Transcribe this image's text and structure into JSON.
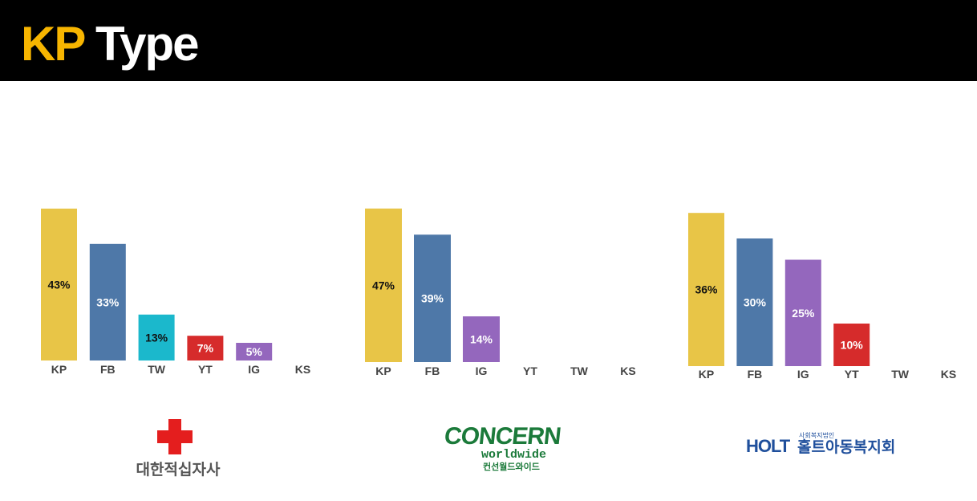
{
  "header": {
    "title_accent": "KP",
    "title_rest": "Type"
  },
  "colors": {
    "KP": "#e8c547",
    "FB": "#4e78a8",
    "TW": "#1bb8cc",
    "YT": "#d62b2b",
    "IG": "#9467bd",
    "header_bg": "#000000",
    "accent": "#f7b500"
  },
  "chart_data": [
    {
      "type": "bar",
      "categories": [
        "KP",
        "FB",
        "TW",
        "YT",
        "IG",
        "KS"
      ],
      "values": [
        43,
        33,
        13,
        7,
        5,
        0
      ],
      "labels": [
        "43%",
        "33%",
        "13%",
        "7%",
        "5%",
        ""
      ]
    },
    {
      "type": "bar",
      "categories": [
        "KP",
        "FB",
        "IG",
        "YT",
        "TW",
        "KS"
      ],
      "values": [
        47,
        39,
        14,
        0,
        0,
        0
      ],
      "labels": [
        "47%",
        "39%",
        "14%",
        "",
        "",
        ""
      ]
    },
    {
      "type": "bar",
      "categories": [
        "KP",
        "FB",
        "IG",
        "YT",
        "TW",
        "KS"
      ],
      "values": [
        36,
        30,
        25,
        10,
        0,
        0
      ],
      "labels": [
        "36%",
        "30%",
        "25%",
        "10%",
        "",
        ""
      ]
    }
  ],
  "logos": {
    "red_cross": {
      "icon": "red-cross-icon",
      "name": "대한적십자사"
    },
    "concern": {
      "name_main": "CONCERN",
      "name_sub": "worldwide",
      "name_kr": "컨선월드와이드"
    },
    "holt": {
      "mark": "HOLT",
      "tagline": "사회복지법인",
      "name": "홀트아동복지회"
    }
  }
}
